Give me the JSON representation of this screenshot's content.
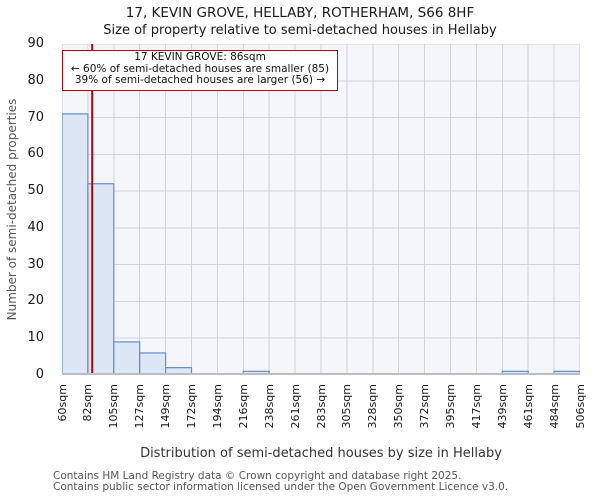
{
  "header": {
    "title": "17, KEVIN GROVE, HELLABY, ROTHERHAM, S66 8HF",
    "subtitle": "Size of property relative to semi-detached houses in Hellaby"
  },
  "annotation": {
    "line1": "17 KEVIN GROVE: 86sqm",
    "line2": "← 60% of semi-detached houses are smaller (85)",
    "line3": "39% of semi-detached houses are larger (56) →"
  },
  "chart_data": {
    "type": "bar",
    "title": "17, KEVIN GROVE, HELLABY, ROTHERHAM, S66 8HF",
    "subtitle": "Size of property relative to semi-detached houses in Hellaby",
    "xlabel": "Distribution of semi-detached houses by size in Hellaby",
    "ylabel": "Number of semi-detached properties",
    "categories": [
      "60sqm",
      "82sqm",
      "105sqm",
      "127sqm",
      "149sqm",
      "172sqm",
      "194sqm",
      "216sqm",
      "238sqm",
      "261sqm",
      "283sqm",
      "305sqm",
      "328sqm",
      "350sqm",
      "372sqm",
      "395sqm",
      "417sqm",
      "439sqm",
      "461sqm",
      "484sqm",
      "506sqm"
    ],
    "bin_edges_sqm": [
      60,
      82,
      105,
      127,
      149,
      172,
      194,
      216,
      238,
      261,
      283,
      305,
      328,
      350,
      372,
      395,
      417,
      439,
      461,
      484,
      506
    ],
    "values": [
      71,
      52,
      9,
      6,
      2,
      0,
      0,
      1,
      0,
      0,
      0,
      0,
      0,
      0,
      0,
      0,
      0,
      1,
      0,
      1
    ],
    "ylim": [
      0,
      90
    ],
    "ytick_step": 10,
    "marker_value_sqm": 86,
    "grid": true,
    "legend": false
  },
  "footer": {
    "line1": "Contains HM Land Registry data © Crown copyright and database right 2025.",
    "line2": "Contains public sector information licensed under the Open Government Licence v3.0."
  },
  "colors": {
    "bar_fill": "#dce6f4",
    "bar_edge": "#5f8fc7",
    "marker": "#bb0000",
    "annotation_border": "#b50000",
    "grid": "#d0d2d8",
    "plot_bg": "#f4f6fc",
    "axis_line": "#bbbdc4"
  }
}
